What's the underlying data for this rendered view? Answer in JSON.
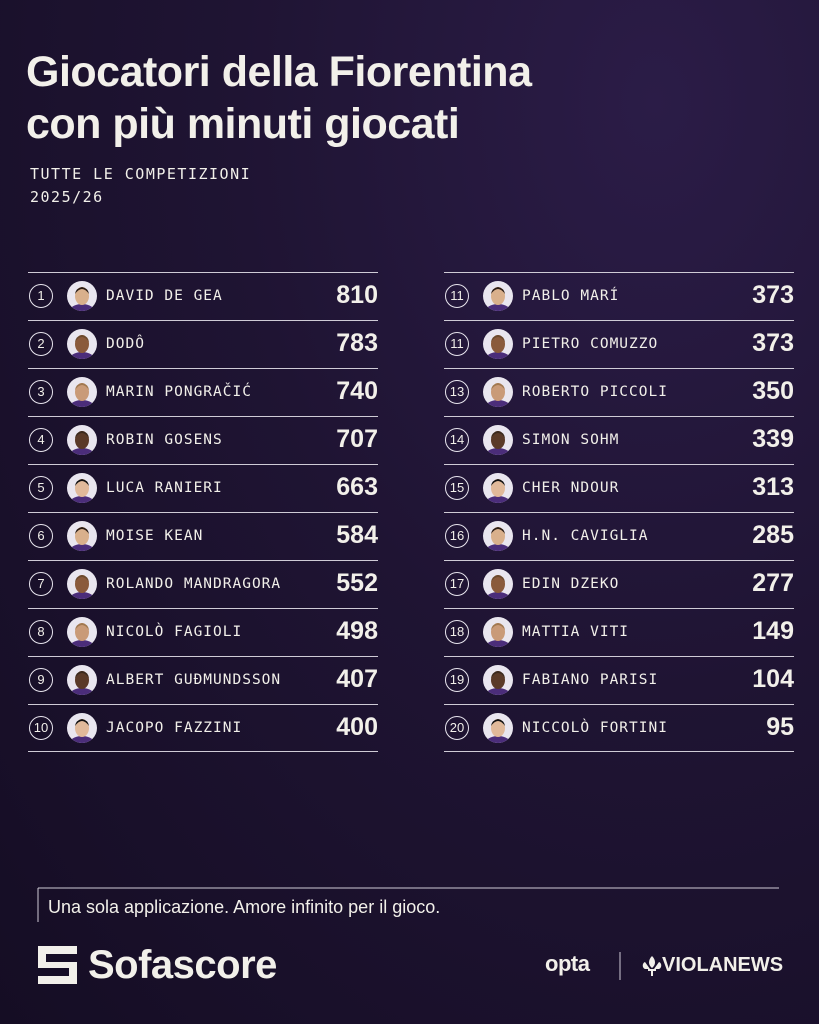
{
  "header": {
    "title_lines": [
      "Giocatori della Fiorentina",
      "con più minuti giocati"
    ],
    "subtitle_lines": [
      "TUTTE LE COMPETIZIONI",
      "2025/26"
    ]
  },
  "players": [
    {
      "rank": "1",
      "name": "DAVID DE GEA",
      "minutes": "810"
    },
    {
      "rank": "2",
      "name": "DODÔ",
      "minutes": "783"
    },
    {
      "rank": "3",
      "name": "MARIN PONGRAČIĆ",
      "minutes": "740"
    },
    {
      "rank": "4",
      "name": "ROBIN GOSENS",
      "minutes": "707"
    },
    {
      "rank": "5",
      "name": "LUCA RANIERI",
      "minutes": "663"
    },
    {
      "rank": "6",
      "name": "MOISE KEAN",
      "minutes": "584"
    },
    {
      "rank": "7",
      "name": "ROLANDO MANDRAGORA",
      "minutes": "552"
    },
    {
      "rank": "8",
      "name": "NICOLÒ FAGIOLI",
      "minutes": "498"
    },
    {
      "rank": "9",
      "name": "ALBERT GUÐMUNDSSON",
      "minutes": "407"
    },
    {
      "rank": "10",
      "name": "JACOPO FAZZINI",
      "minutes": "400"
    },
    {
      "rank": "11",
      "name": "PABLO MARÍ",
      "minutes": "373"
    },
    {
      "rank": "11",
      "name": "PIETRO COMUZZO",
      "minutes": "373"
    },
    {
      "rank": "13",
      "name": "ROBERTO PICCOLI",
      "minutes": "350"
    },
    {
      "rank": "14",
      "name": "SIMON SOHM",
      "minutes": "339"
    },
    {
      "rank": "15",
      "name": "CHER NDOUR",
      "minutes": "313"
    },
    {
      "rank": "16",
      "name": "H.N. CAVIGLIA",
      "minutes": "285"
    },
    {
      "rank": "17",
      "name": "EDIN DZEKO",
      "minutes": "277"
    },
    {
      "rank": "18",
      "name": "MATTIA VITI",
      "minutes": "149"
    },
    {
      "rank": "19",
      "name": "FABIANO PARISI",
      "minutes": "104"
    },
    {
      "rank": "20",
      "name": "NICCOLÒ FORTINI",
      "minutes": "95"
    }
  ],
  "footer": {
    "tagline": "Una sola applicazione. Amore infinito per il gioco.",
    "brand": "Sofascore",
    "partner_1": "opta",
    "partner_2": "VIOLANEWS"
  }
}
